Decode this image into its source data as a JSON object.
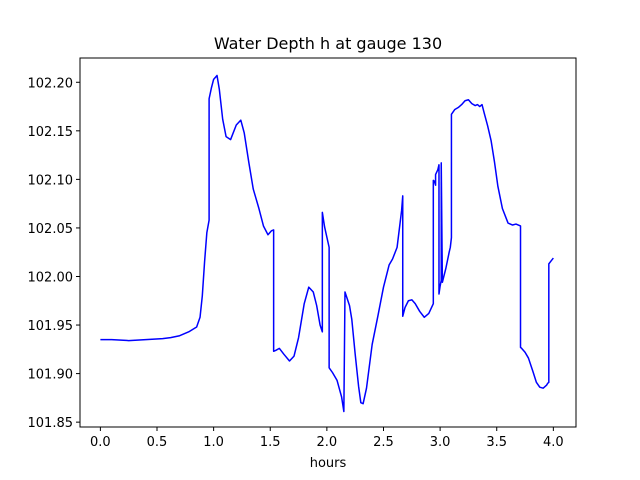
{
  "chart_data": {
    "type": "line",
    "title": "Water Depth h at gauge 130",
    "xlabel": "hours",
    "ylabel": "",
    "xlim": [
      -0.18,
      4.2
    ],
    "ylim": [
      101.845,
      102.225
    ],
    "grid": false,
    "xticks": [
      0.0,
      0.5,
      1.0,
      1.5,
      2.0,
      2.5,
      3.0,
      3.5,
      4.0
    ],
    "xtick_labels": [
      "0.0",
      "0.5",
      "1.0",
      "1.5",
      "2.0",
      "2.5",
      "3.0",
      "3.5",
      "4.0"
    ],
    "yticks": [
      101.85,
      101.9,
      101.95,
      102.0,
      102.05,
      102.1,
      102.15,
      102.2
    ],
    "ytick_labels": [
      "101.85",
      "101.90",
      "101.95",
      "102.00",
      "102.05",
      "102.10",
      "102.15",
      "102.20"
    ],
    "series": [
      {
        "color": "#0000ff",
        "x": [
          0.0,
          0.1,
          0.25,
          0.4,
          0.55,
          0.62,
          0.7,
          0.78,
          0.85,
          0.88,
          0.9,
          0.92,
          0.94,
          0.96,
          0.96,
          0.98,
          1.0,
          1.03,
          1.05,
          1.08,
          1.11,
          1.15,
          1.2,
          1.24,
          1.27,
          1.31,
          1.35,
          1.4,
          1.44,
          1.48,
          1.51,
          1.53,
          1.53,
          1.55,
          1.58,
          1.62,
          1.67,
          1.71,
          1.75,
          1.8,
          1.84,
          1.88,
          1.91,
          1.94,
          1.96,
          1.96,
          1.98,
          2.02,
          2.02,
          2.05,
          2.09,
          2.13,
          2.15,
          2.16,
          2.2,
          2.22,
          2.25,
          2.28,
          2.3,
          2.32,
          2.35,
          2.4,
          2.45,
          2.5,
          2.55,
          2.58,
          2.62,
          2.66,
          2.67,
          2.67,
          2.69,
          2.72,
          2.75,
          2.78,
          2.82,
          2.86,
          2.9,
          2.92,
          2.94,
          2.94,
          2.95,
          2.96,
          2.96,
          2.98,
          2.99,
          2.99,
          3.0,
          3.01,
          3.01,
          3.02,
          3.05,
          3.08,
          3.09,
          3.1,
          3.1,
          3.13,
          3.16,
          3.19,
          3.22,
          3.25,
          3.28,
          3.31,
          3.33,
          3.35,
          3.37,
          3.39,
          3.42,
          3.45,
          3.48,
          3.51,
          3.55,
          3.6,
          3.64,
          3.67,
          3.71,
          3.71,
          3.72,
          3.75,
          3.78,
          3.82,
          3.85,
          3.88,
          3.91,
          3.94,
          3.95,
          3.96,
          3.96,
          3.98,
          4.0
        ],
        "y": [
          101.935,
          101.935,
          101.934,
          101.935,
          101.936,
          101.937,
          101.939,
          101.943,
          101.948,
          101.958,
          101.98,
          102.015,
          102.045,
          102.058,
          102.183,
          102.194,
          102.203,
          102.207,
          102.193,
          102.162,
          102.144,
          102.141,
          102.156,
          102.161,
          102.148,
          102.118,
          102.09,
          102.07,
          102.052,
          102.043,
          102.047,
          102.048,
          101.923,
          101.924,
          101.926,
          101.92,
          101.913,
          101.918,
          101.937,
          101.972,
          101.989,
          101.984,
          101.97,
          101.95,
          101.943,
          102.066,
          102.051,
          102.03,
          101.906,
          101.901,
          101.893,
          101.876,
          101.861,
          101.984,
          101.97,
          101.956,
          101.92,
          101.887,
          101.87,
          101.869,
          101.885,
          101.93,
          101.959,
          101.989,
          102.012,
          102.018,
          102.03,
          102.068,
          102.083,
          101.959,
          101.968,
          101.975,
          101.976,
          101.972,
          101.964,
          101.958,
          101.962,
          101.967,
          101.972,
          102.099,
          102.098,
          102.094,
          102.105,
          102.11,
          102.115,
          101.982,
          101.99,
          101.996,
          102.117,
          101.994,
          102.008,
          102.025,
          102.03,
          102.04,
          102.167,
          102.172,
          102.174,
          102.177,
          102.181,
          102.182,
          102.178,
          102.176,
          102.177,
          102.175,
          102.177,
          102.168,
          102.155,
          102.14,
          102.118,
          102.093,
          102.07,
          102.055,
          102.053,
          102.054,
          102.052,
          101.927,
          101.926,
          101.922,
          101.916,
          101.902,
          101.891,
          101.886,
          101.885,
          101.888,
          101.89,
          101.891,
          102.013,
          102.016,
          102.019
        ]
      }
    ]
  }
}
